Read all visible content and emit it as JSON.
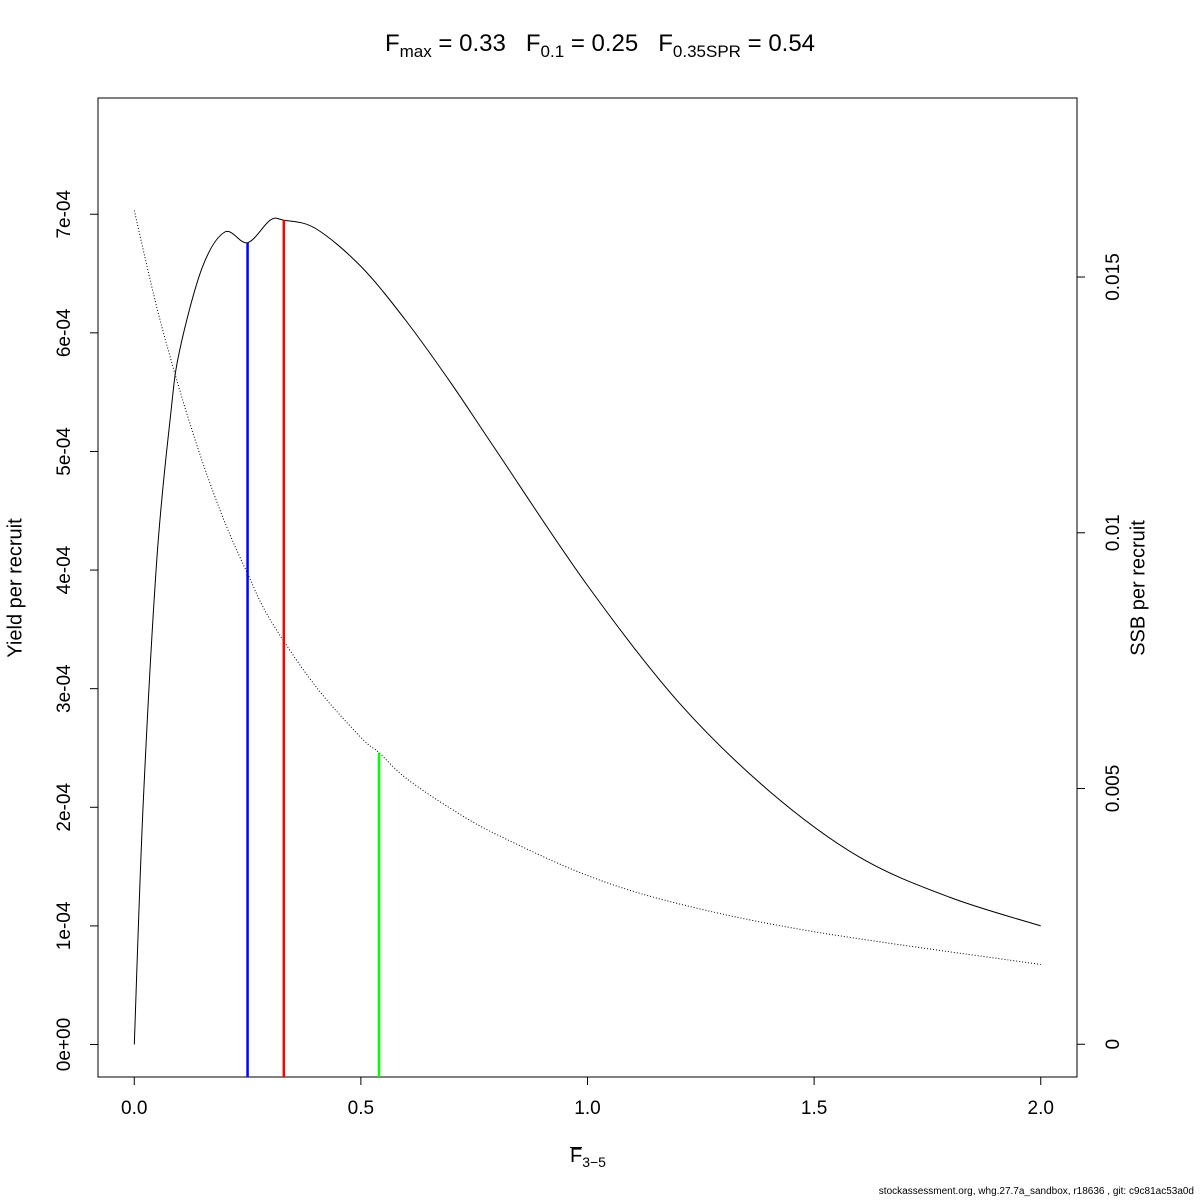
{
  "title": {
    "fmax": {
      "label": "F",
      "sub": "max",
      "value": "0.33"
    },
    "f01": {
      "label": "F",
      "sub": "0.1",
      "value": "0.25"
    },
    "fspr": {
      "label": "F",
      "sub": "0.35SPR",
      "value": "0.54"
    }
  },
  "footer": "stockassessment.org, whg.27.7a_sandbox, r18636 , git: c9c81ac53a0d",
  "chart_data": {
    "type": "line",
    "xlabel": {
      "main": "F",
      "sub": "3−5"
    },
    "ylabel": "Yield per recruit",
    "y2label": "SSB per recruit",
    "xlim": [
      -0.08,
      2.08
    ],
    "ylim": [
      -2.74e-05,
      0.000798
    ],
    "y2lim": [
      -0.00064,
      0.0185
    ],
    "x_ticks": [
      0.0,
      0.5,
      1.0,
      1.5,
      2.0
    ],
    "x_tick_labels": [
      "0.0",
      "0.5",
      "1.0",
      "1.5",
      "2.0"
    ],
    "y_ticks": [
      0,
      0.0001,
      0.0002,
      0.0003,
      0.0004,
      0.0005,
      0.0006,
      0.0007
    ],
    "y_tick_labels": [
      "0e+00",
      "1e-04",
      "2e-04",
      "3e-04",
      "4e-04",
      "5e-04",
      "6e-04",
      "7e-04"
    ],
    "y2_ticks": [
      0,
      0.005,
      0.01,
      0.015
    ],
    "y2_tick_labels": [
      "0",
      "0.005",
      "0.01",
      "0.015"
    ],
    "grid": false,
    "series": [
      {
        "axis": "left",
        "style": "solid",
        "color": "#000000",
        "x": [
          0,
          0.02,
          0.05,
          0.08,
          0.1,
          0.15,
          0.2,
          0.25,
          0.3,
          0.33,
          0.4,
          0.5,
          0.6,
          0.7,
          0.8,
          1.0,
          1.2,
          1.4,
          1.6,
          1.8,
          2.0
        ],
        "y": [
          0,
          0.000205,
          0.00041,
          0.00053,
          0.000585,
          0.000655,
          0.000685,
          0.000676,
          0.000695,
          0.000695,
          0.000688,
          0.000656,
          0.00061,
          0.000557,
          0.0005,
          0.000387,
          0.000289,
          0.000214,
          0.000158,
          0.000124,
          0.0001
        ]
      },
      {
        "axis": "right",
        "style": "dotted",
        "color": "#000000",
        "x": [
          0,
          0.05,
          0.1,
          0.15,
          0.2,
          0.25,
          0.3,
          0.4,
          0.5,
          0.54,
          0.6,
          0.7,
          0.8,
          1.0,
          1.2,
          1.5,
          2.0
        ],
        "y": [
          0.0163,
          0.0144,
          0.0128,
          0.0114,
          0.0102,
          0.0092,
          0.0083,
          0.007,
          0.006,
          0.0057,
          0.0052,
          0.0046,
          0.0041,
          0.0033,
          0.00275,
          0.0022,
          0.00156
        ]
      }
    ],
    "reference_lines": [
      {
        "name": "F0.1",
        "x": 0.25,
        "color": "#0000ff",
        "axis": "left",
        "y_top": 0.000676
      },
      {
        "name": "Fmax",
        "x": 0.33,
        "color": "#ff0000",
        "axis": "left",
        "y_top": 0.000695
      },
      {
        "name": "F0.35SPR",
        "x": 0.54,
        "color": "#00ff00",
        "axis": "right",
        "y_top": 0.0057
      }
    ]
  }
}
